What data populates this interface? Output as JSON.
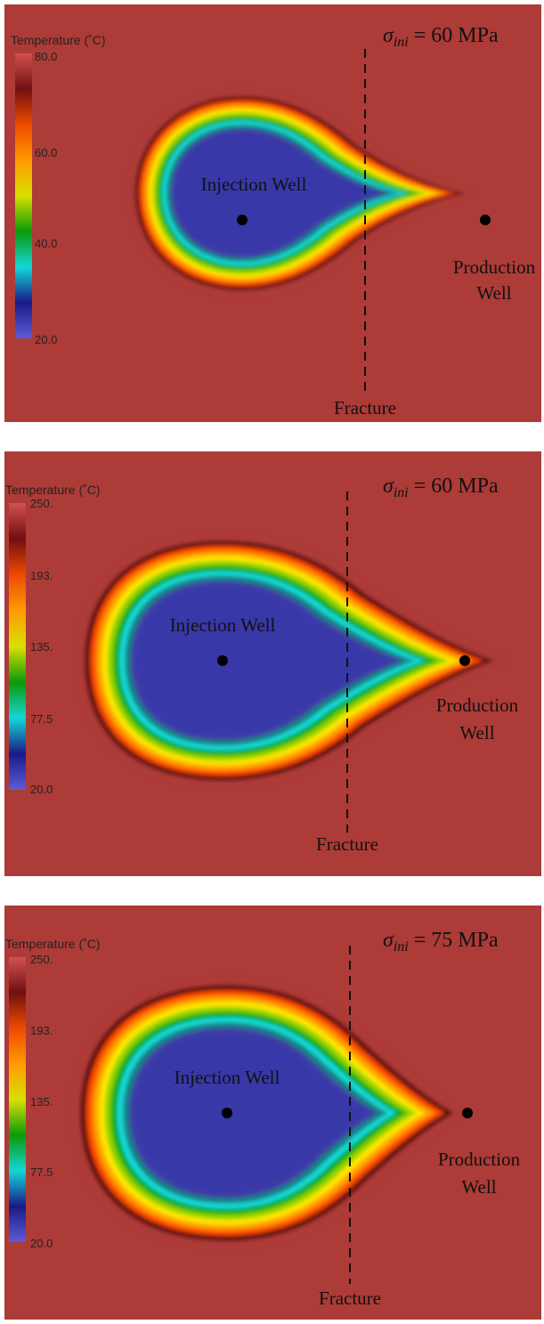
{
  "colorbar_ramp": [
    "#5c5cd6",
    "#1a1a88",
    "#14d6d6",
    "#0a9a0a",
    "#d8e000",
    "#ff9a00",
    "#ee4a00",
    "#701010",
    "#d45050"
  ],
  "contour_bands": [
    "#ad3b37",
    "#5e0a0a",
    "#ff4d00",
    "#ffa200",
    "#ffe800",
    "#8cd200",
    "#00a818",
    "#18dada",
    "#148080",
    "#3d3da8",
    "#3838a8"
  ],
  "background_color": "#ad3b37",
  "panels": [
    {
      "colorbar": {
        "title": "Temperature (˚C)",
        "max_label": "80.0",
        "ticks": [
          "60.0",
          "40.0",
          "20.0"
        ]
      },
      "stress": {
        "symbol": "σ",
        "subscript": "ini",
        "value_text": " = 60 MPa"
      },
      "injection_label": "Injection Well",
      "production_label_line1": "Production",
      "production_label_line2": "Well",
      "fracture_label": "Fracture"
    },
    {
      "colorbar": {
        "title": "Temperature (˚C)",
        "max_label": "250.",
        "ticks": [
          "193.",
          "135.",
          "77.5",
          "20.0"
        ]
      },
      "stress": {
        "symbol": "σ",
        "subscript": "ini",
        "value_text": " = 60 MPa"
      },
      "injection_label": "Injection Well",
      "production_label_line1": "Production",
      "production_label_line2": "Well",
      "fracture_label": "Fracture"
    },
    {
      "colorbar": {
        "title": "Temperature (˚C)",
        "max_label": "250.",
        "ticks": [
          "193.",
          "135.",
          "77.5",
          "20.0"
        ]
      },
      "stress": {
        "symbol": "σ",
        "subscript": "ini",
        "value_text": " = 75 MPa"
      },
      "injection_label": "Injection Well",
      "production_label_line1": "Production",
      "production_label_line2": "Well",
      "fracture_label": "Fracture"
    }
  ]
}
